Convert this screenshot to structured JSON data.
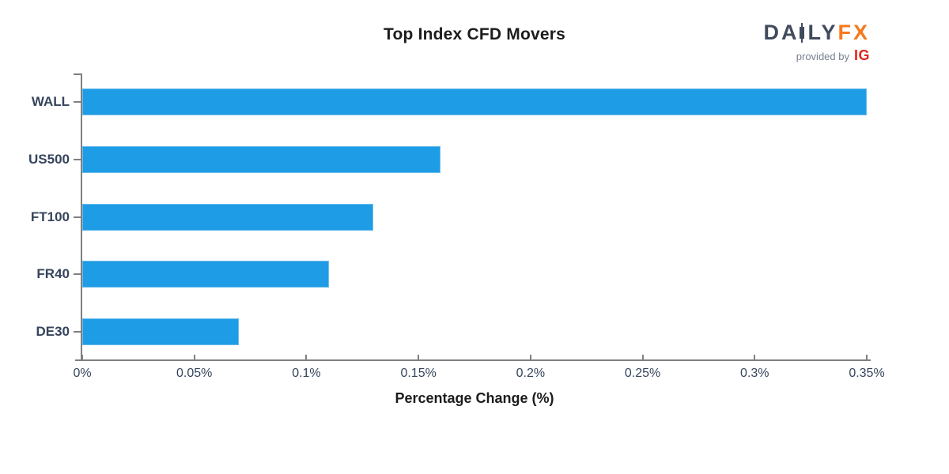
{
  "header": {
    "title": "Top Index CFD Movers",
    "logo": {
      "da": "DA",
      "ly": "LY",
      "fx": "FX",
      "tagline": "provided by",
      "ig": "IG"
    }
  },
  "colors": {
    "bar": "#1e9ce5",
    "bar_edge": "#6cbcec",
    "axis": "#808080",
    "tick_label": "#36455c",
    "title_text": "#1c1c1c",
    "logo_daily": "#414b5e",
    "logo_fx": "#f7791b",
    "logo_ig": "#e1251b",
    "logo_tagline": "#76808f"
  },
  "chart_data": {
    "type": "bar",
    "orientation": "horizontal",
    "title": "Top Index CFD Movers",
    "xlabel": "Percentage Change (%)",
    "categories": [
      "WALL",
      "US500",
      "FT100",
      "FR40",
      "DE30"
    ],
    "values": [
      0.35,
      0.16,
      0.13,
      0.11,
      0.07
    ],
    "xlim": [
      0,
      0.35
    ],
    "x_ticks": [
      0,
      0.05,
      0.1,
      0.15,
      0.2,
      0.25,
      0.3,
      0.35
    ],
    "x_tick_labels": [
      "0%",
      "0.05%",
      "0.1%",
      "0.15%",
      "0.2%",
      "0.25%",
      "0.3%",
      "0.35%"
    ],
    "grid": false,
    "legend": null
  }
}
